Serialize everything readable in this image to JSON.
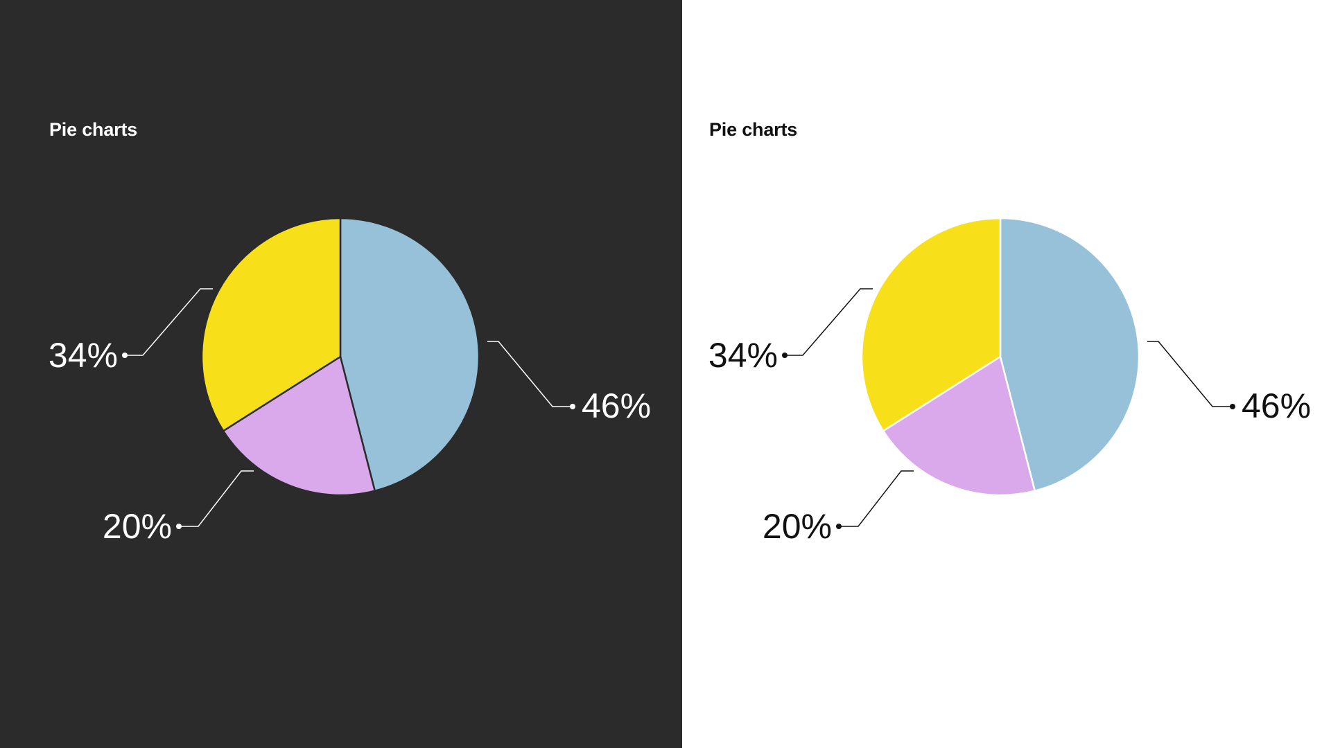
{
  "chart_data": [
    {
      "type": "pie",
      "title": "Pie charts",
      "theme": "dark",
      "background": "#2b2b2c",
      "text_color": "#ffffff",
      "values": [
        46,
        20,
        34
      ],
      "labels": [
        "46%",
        "20%",
        "34%"
      ],
      "colors": [
        "#96c1d9",
        "#d9a9eb",
        "#f7e01a"
      ]
    },
    {
      "type": "pie",
      "title": "Pie charts",
      "theme": "light",
      "background": "#ffffff",
      "text_color": "#111111",
      "values": [
        46,
        20,
        34
      ],
      "labels": [
        "46%",
        "20%",
        "34%"
      ],
      "colors": [
        "#96c1d9",
        "#d9a9eb",
        "#f7e01a"
      ]
    }
  ]
}
